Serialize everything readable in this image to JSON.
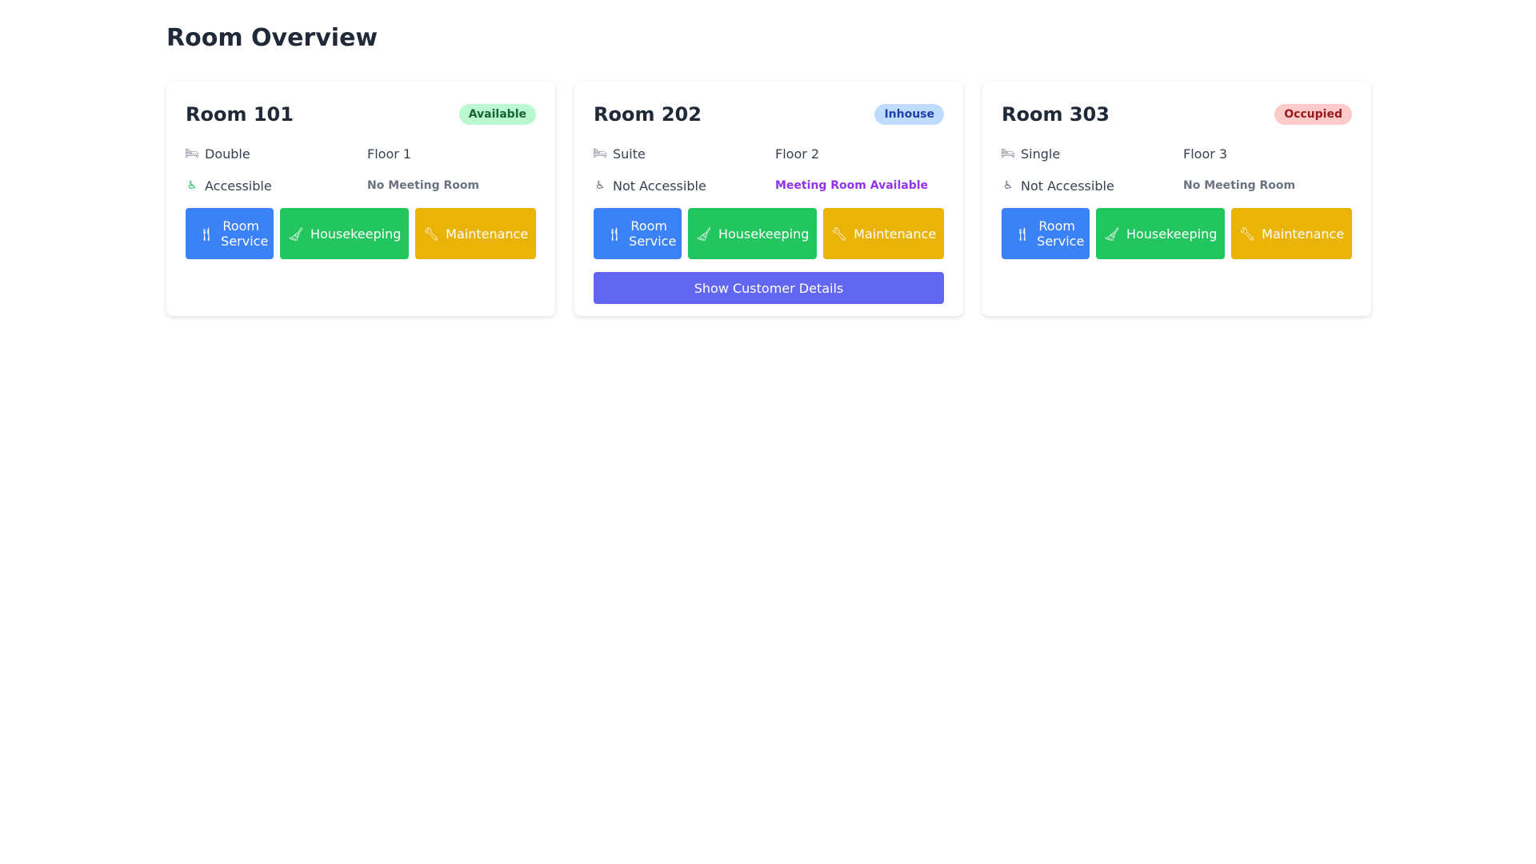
{
  "page_title": "Room Overview",
  "buttons": {
    "room_service": "Room Service",
    "housekeeping": "Housekeeping",
    "maintenance": "Maintenance",
    "show_customer": "Show Customer Details"
  },
  "rooms": [
    {
      "title": "Room 101",
      "status": "Available",
      "status_bg": "#bbf7d0",
      "status_fg": "#166534",
      "type": "Double",
      "floor": "Floor 1",
      "accessibility": "Accessible",
      "accessible": true,
      "meeting": "No Meeting Room",
      "meeting_available": false,
      "show_customer": false
    },
    {
      "title": "Room 202",
      "status": "Inhouse",
      "status_bg": "#bfdbfe",
      "status_fg": "#1e40af",
      "type": "Suite",
      "floor": "Floor 2",
      "accessibility": "Not Accessible",
      "accessible": false,
      "meeting": "Meeting Room Available",
      "meeting_available": true,
      "show_customer": true
    },
    {
      "title": "Room 303",
      "status": "Occupied",
      "status_bg": "#fecaca",
      "status_fg": "#991b1b",
      "type": "Single",
      "floor": "Floor 3",
      "accessibility": "Not Accessible",
      "accessible": false,
      "meeting": "No Meeting Room",
      "meeting_available": false,
      "show_customer": false
    }
  ]
}
